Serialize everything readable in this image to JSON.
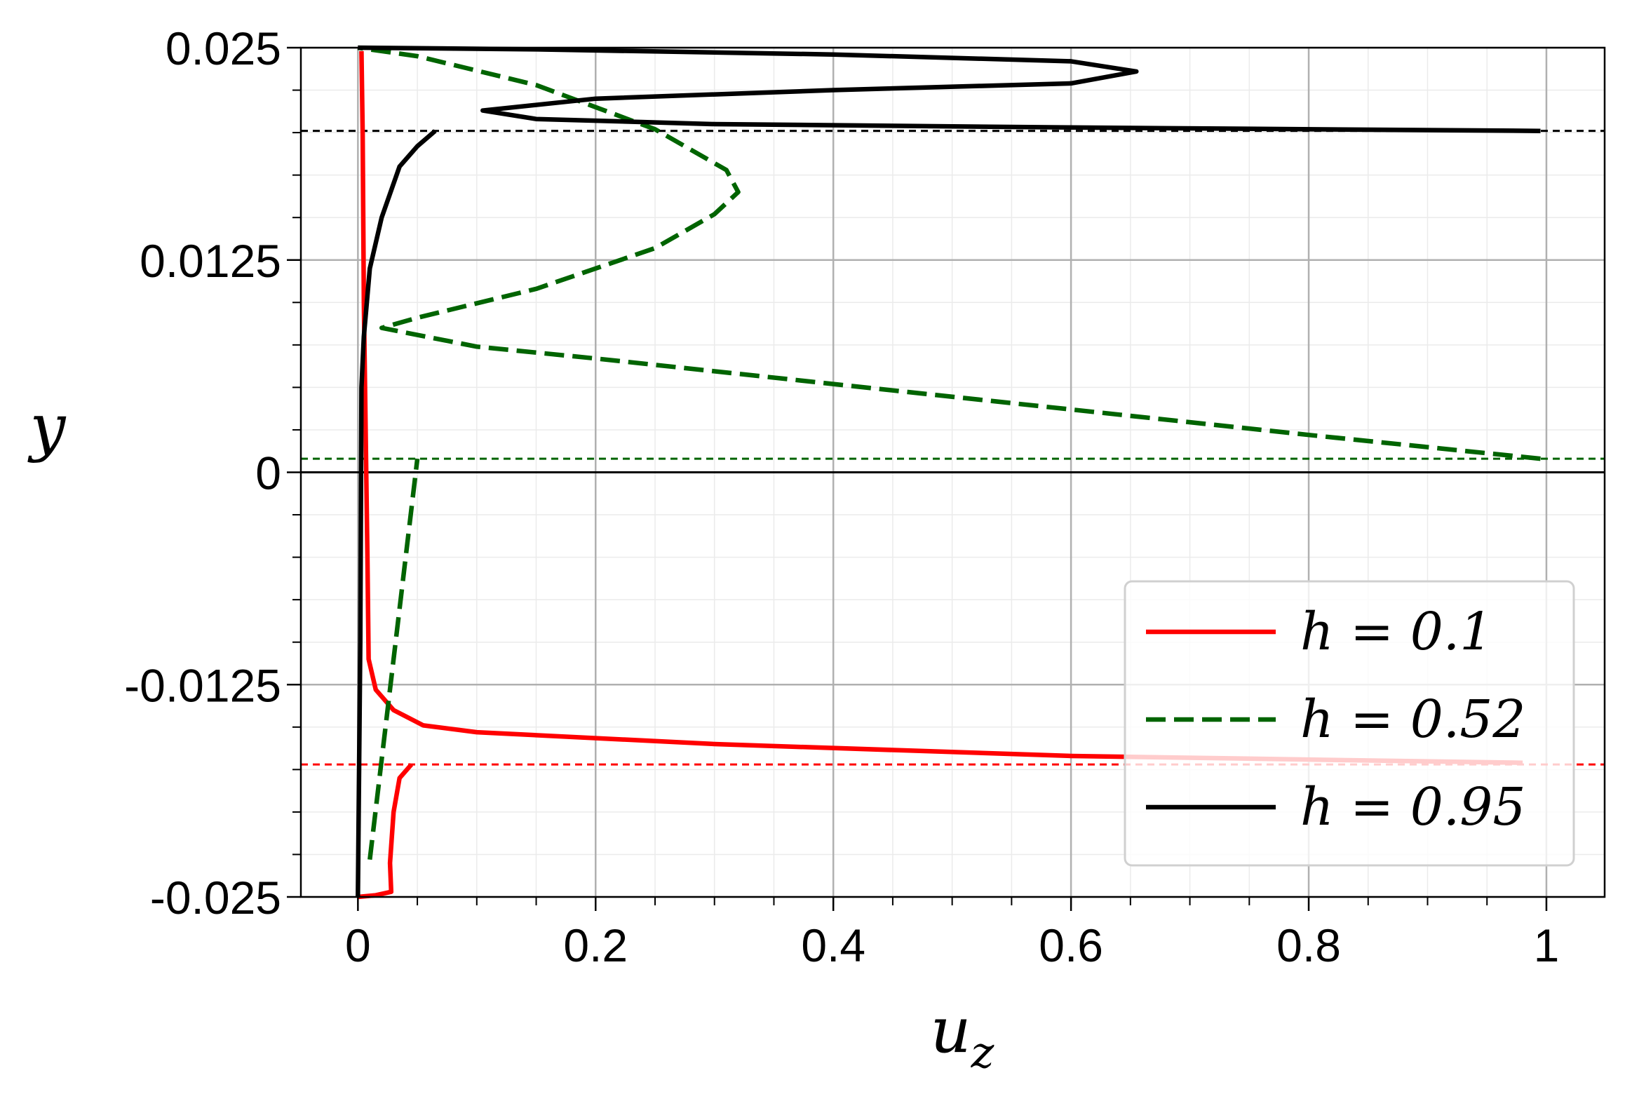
{
  "chart_data": {
    "type": "line",
    "xlabel": {
      "main": "u",
      "subscript": "z"
    },
    "ylabel": "y",
    "xlim": [
      -0.048,
      1.049
    ],
    "ylim": [
      -0.025,
      0.025
    ],
    "xticks": [
      0,
      0.2,
      0.4,
      0.6,
      0.8,
      1
    ],
    "yticks": [
      -0.025,
      -0.0125,
      0,
      0.0125,
      0.025
    ],
    "minor_divisions": {
      "x": 4,
      "y": 5
    },
    "grid": true,
    "legend": "lower right",
    "zero_line": {
      "y": 0,
      "color": "#000000"
    },
    "hlines": [
      {
        "y": -0.0172,
        "color": "#ff0000"
      },
      {
        "y": 0.0008,
        "color": "#006400"
      },
      {
        "y": 0.0201,
        "color": "#000000"
      }
    ],
    "series": [
      {
        "name": "h = 0.1",
        "color": "#ff0000",
        "dash": "solid",
        "x": [
          0,
          0.015,
          0.028,
          0.027,
          0.03,
          0.035,
          0.045,
          null,
          0.98,
          0.6,
          0.3,
          0.1,
          0.055,
          0.03,
          0.015,
          0.009,
          0.008,
          0.007,
          0.005,
          0.004,
          0.003
        ],
        "y": [
          -0.025,
          -0.0249,
          -0.0247,
          -0.023,
          -0.02,
          -0.018,
          -0.0172,
          null,
          -0.0171,
          -0.0167,
          -0.016,
          -0.0153,
          -0.0149,
          -0.014,
          -0.0128,
          -0.011,
          -0.005,
          0,
          0.01,
          0.02,
          0.0248
        ]
      },
      {
        "name": "h = 0.52",
        "color": "#006400",
        "dash": "dashed",
        "x": [
          0.01,
          0.05,
          null,
          0.995,
          0.8,
          0.6,
          0.4,
          0.2,
          0.1,
          0.02,
          0.05,
          0.15,
          0.25,
          0.3,
          0.32,
          0.31,
          0.25,
          0.15,
          0.05,
          0
        ],
        "y": [
          -0.0228,
          0.0008,
          null,
          0.0008,
          0.0022,
          0.0037,
          0.0052,
          0.0067,
          0.0074,
          0.0085,
          0.0091,
          0.0108,
          0.0132,
          0.0152,
          0.0165,
          0.0178,
          0.0202,
          0.0228,
          0.0245,
          0.025
        ]
      },
      {
        "name": "h = 0.95",
        "color": "#000000",
        "dash": "solid",
        "x": [
          0,
          0.002,
          0.003,
          0.005,
          0.01,
          0.02,
          0.035,
          0.05,
          0.065,
          null,
          0.995,
          0.6,
          0.3,
          0.15,
          0.105,
          0.2,
          0.4,
          0.6,
          0.655,
          0.6,
          0.4,
          0.15,
          0
        ],
        "y": [
          -0.025,
          -0.01,
          0.005,
          0.008,
          0.012,
          0.015,
          0.018,
          0.0192,
          0.0201,
          null,
          0.0201,
          0.0203,
          0.0205,
          0.0208,
          0.0213,
          0.022,
          0.0225,
          0.0229,
          0.0236,
          0.0242,
          0.0246,
          0.0249,
          0.025
        ]
      }
    ]
  }
}
